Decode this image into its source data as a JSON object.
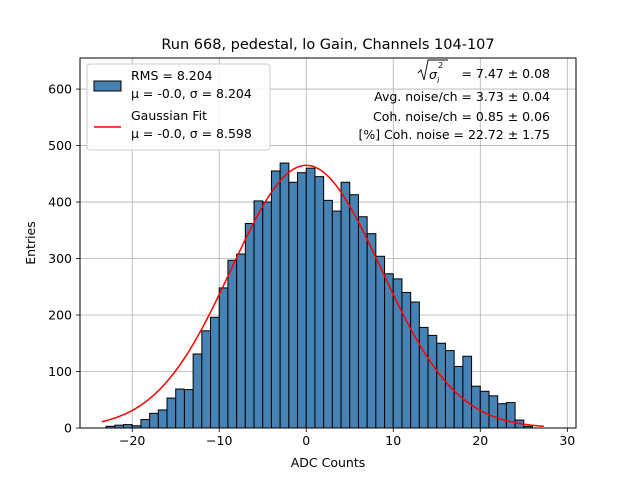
{
  "chart_data": {
    "type": "bar",
    "title": "Run 668, pedestal, lo Gain, Channels 104-107",
    "xlabel": "ADC Counts",
    "ylabel": "Entries",
    "xlim": [
      -26,
      31
    ],
    "ylim": [
      0,
      655
    ],
    "xticks": [
      -20,
      -10,
      0,
      10,
      20,
      30
    ],
    "xtick_labels": [
      "−20",
      "−10",
      "0",
      "10",
      "20",
      "30"
    ],
    "yticks": [
      0,
      100,
      200,
      300,
      400,
      500,
      600
    ],
    "ytick_labels": [
      "0",
      "100",
      "200",
      "300",
      "400",
      "500",
      "600"
    ],
    "grid": true,
    "bin_edges_start": -23,
    "bin_width": 1,
    "values": [
      3,
      5,
      6,
      4,
      15,
      26,
      32,
      53,
      69,
      68,
      131,
      172,
      196,
      248,
      297,
      308,
      362,
      402,
      400,
      455,
      469,
      435,
      452,
      460,
      445,
      403,
      384,
      435,
      413,
      374,
      344,
      304,
      273,
      264,
      240,
      223,
      178,
      164,
      150,
      137,
      109,
      127,
      74,
      65,
      57,
      43,
      45,
      14,
      3
    ],
    "series": [
      {
        "name": "RMS = 8.204",
        "stats": "μ = -0.0, σ = 8.204",
        "type": "histogram",
        "color": "#4682b4"
      },
      {
        "name": "Gaussian Fit",
        "stats": "μ = -0.0, σ = 8.598",
        "type": "line",
        "color": "#ff0000",
        "mu": 0.0,
        "sigma": 8.598,
        "amplitude": 465,
        "x_range": [
          -23.5,
          27.3
        ]
      }
    ],
    "legend_position": "top-left",
    "annotations": {
      "sigma_label": "= 7.47 ± 0.08",
      "avg_noise": "Avg. noise/ch = 3.73 ± 0.04",
      "coh_noise": "Coh. noise/ch = 0.85 ± 0.06",
      "pct_coh_noise": "[%] Coh. noise = 22.72 ± 1.75"
    }
  }
}
